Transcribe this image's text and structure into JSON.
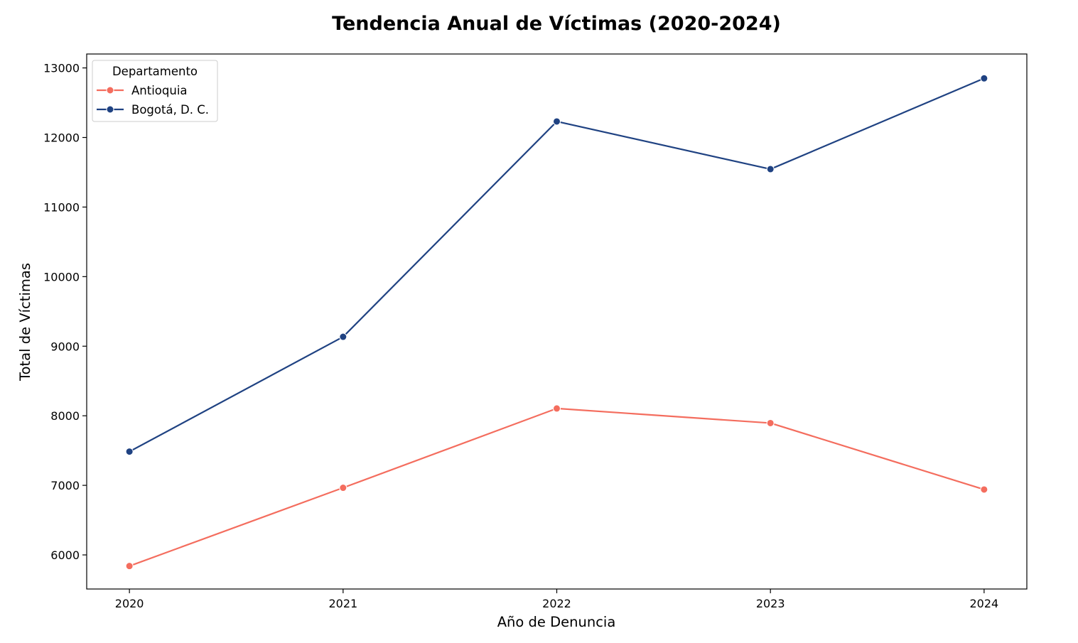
{
  "chart_data": {
    "type": "line",
    "title": "Tendencia Anual de Víctimas (2020-2024)",
    "xlabel": "Año de Denuncia",
    "ylabel": "Total de Víctimas",
    "x": [
      2020,
      2021,
      2022,
      2023,
      2024
    ],
    "x_tick_labels": [
      "2020",
      "2021",
      "2022",
      "2023",
      "2024"
    ],
    "y_ticks": [
      6000,
      7000,
      8000,
      9000,
      10000,
      11000,
      12000,
      13000
    ],
    "y_tick_labels": [
      "6000",
      "7000",
      "8000",
      "9000",
      "10000",
      "11000",
      "12000",
      "13000"
    ],
    "ylim": [
      5510,
      13200
    ],
    "xlim": [
      2019.8,
      2024.2
    ],
    "grid": false,
    "legend": {
      "title": "Departamento",
      "placement": "top-left"
    },
    "series": [
      {
        "name": "Antioquia",
        "color": "#f46d5e",
        "values": [
          5840,
          6965,
          8105,
          7895,
          6940
        ]
      },
      {
        "name": "Bogotá, D. C.",
        "color": "#1f4282",
        "values": [
          7485,
          9135,
          12230,
          11545,
          12850
        ]
      }
    ]
  }
}
